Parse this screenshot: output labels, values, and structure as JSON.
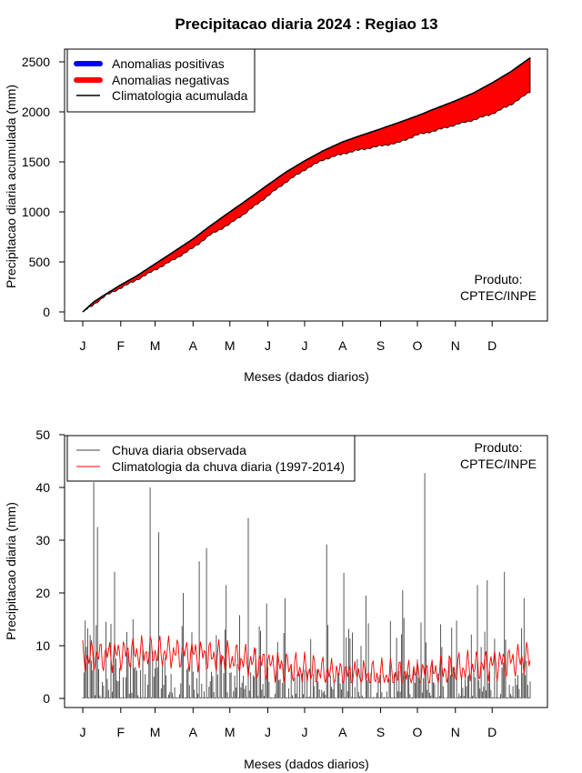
{
  "title": "Precipitacao diaria 2024 : Regiao 13",
  "chart_data": [
    {
      "type": "area",
      "ylabel": "Precipitacao diaria acumulada (mm)",
      "xlabel": "Meses (dados diarios)",
      "ylim": [
        0,
        2700
      ],
      "yticks": [
        "0",
        "500",
        "1000",
        "1500",
        "2000",
        "2500"
      ],
      "xticks": [
        "J",
        "F",
        "M",
        "A",
        "M",
        "J",
        "J",
        "A",
        "S",
        "O",
        "N",
        "D"
      ],
      "legend": {
        "placement": "top-left",
        "items": [
          {
            "label": "Anomalias positivas",
            "color": "#0000ff"
          },
          {
            "label": "Anomalias negativas",
            "color": "#ff0000"
          },
          {
            "label": "Climatologia acumulada",
            "color": "#000000"
          }
        ]
      },
      "credit": [
        "Produto:",
        "CPTEC/INPE"
      ],
      "day_of_year": [
        1,
        10,
        20,
        32,
        45,
        60,
        75,
        91,
        105,
        121,
        135,
        152,
        167,
        182,
        197,
        213,
        227,
        244,
        258,
        274,
        288,
        305,
        320,
        335,
        350,
        366
      ],
      "climatology": [
        0,
        100,
        180,
        270,
        360,
        480,
        600,
        730,
        860,
        1000,
        1120,
        1270,
        1400,
        1510,
        1610,
        1700,
        1760,
        1830,
        1890,
        1960,
        2030,
        2110,
        2190,
        2290,
        2400,
        2540
      ],
      "observed": [
        0,
        75,
        165,
        240,
        320,
        420,
        520,
        640,
        770,
        880,
        1000,
        1160,
        1300,
        1420,
        1520,
        1580,
        1620,
        1660,
        1690,
        1770,
        1810,
        1870,
        1920,
        1980,
        2070,
        2200
      ],
      "series_colors": {
        "positive": "#0000ff",
        "negative": "#ff0000",
        "climatology": "#000000"
      }
    },
    {
      "type": "bar",
      "ylabel": "Precipitacao diaria (mm)",
      "xlabel": "Meses (dados diarios)",
      "ylim": [
        0,
        50
      ],
      "yticks": [
        "0",
        "10",
        "20",
        "30",
        "40",
        "50"
      ],
      "xticks": [
        "J",
        "F",
        "M",
        "A",
        "M",
        "J",
        "J",
        "A",
        "S",
        "O",
        "N",
        "D"
      ],
      "legend": {
        "placement": "top-left",
        "items": [
          {
            "label": "Chuva diaria observada",
            "color": "#444444"
          },
          {
            "label": "Climatologia da chuva diaria (1997-2014)",
            "color": "#ff0000"
          }
        ]
      },
      "credit": [
        "Produto:",
        "CPTEC/INPE"
      ],
      "peaks": [
        {
          "day": 10,
          "value": 41
        },
        {
          "day": 13,
          "value": 32.5
        },
        {
          "day": 27,
          "value": 24
        },
        {
          "day": 42,
          "value": 15
        },
        {
          "day": 56,
          "value": 40
        },
        {
          "day": 63,
          "value": 31.5
        },
        {
          "day": 83,
          "value": 20
        },
        {
          "day": 96,
          "value": 26
        },
        {
          "day": 102,
          "value": 28.5
        },
        {
          "day": 118,
          "value": 21.5
        },
        {
          "day": 136,
          "value": 34.2
        },
        {
          "day": 151,
          "value": 18
        },
        {
          "day": 166,
          "value": 19
        },
        {
          "day": 200,
          "value": 29.2
        },
        {
          "day": 214,
          "value": 23.8
        },
        {
          "day": 232,
          "value": 19.5
        },
        {
          "day": 262,
          "value": 20.5
        },
        {
          "day": 280,
          "value": 42.7
        },
        {
          "day": 323,
          "value": 21.5
        },
        {
          "day": 331,
          "value": 22.4
        },
        {
          "day": 345,
          "value": 24
        },
        {
          "day": 361,
          "value": 19
        }
      ],
      "climatology_range": [
        3,
        13
      ]
    }
  ]
}
